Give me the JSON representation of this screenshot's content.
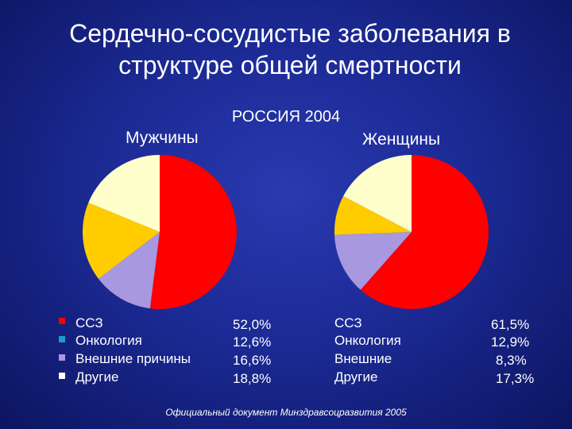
{
  "title_line1": "Сердечно-сосудистые заболевания в",
  "title_line2": "структуре общей смертности",
  "subtitle": "РОССИЯ 2004",
  "source": "Официальный документ Минздравсоцразвития 2005",
  "colors": {
    "ssz": "#ff0000",
    "oncology": "#a898e0",
    "external": "#ffcc00",
    "other": "#ffffcc"
  },
  "chart_data": [
    {
      "type": "pie",
      "title": "Мужчины",
      "slices": [
        {
          "label": "ССЗ",
          "value": 52.0,
          "display": "52,0%",
          "color": "#ff0000"
        },
        {
          "label": "Онкология",
          "value": 12.6,
          "display": "12,6%",
          "color": "#a898e0"
        },
        {
          "label": "Внешние причины",
          "value": 16.6,
          "display": "16,6%",
          "color": "#ffcc00"
        },
        {
          "label": "Другие",
          "value": 18.8,
          "display": "18,8%",
          "color": "#ffffcc"
        }
      ],
      "legend_square_colors": [
        "#ff0000",
        "#1e9bd7",
        "#a898e0",
        "#ffffff"
      ]
    },
    {
      "type": "pie",
      "title": "Женщины",
      "slices": [
        {
          "label": "ССЗ",
          "value": 61.5,
          "display": "61,5%",
          "color": "#ff0000"
        },
        {
          "label": "Онкология",
          "value": 12.9,
          "display": "12,9%",
          "color": "#a898e0"
        },
        {
          "label": "Внешние",
          "value": 8.3,
          "display": "8,3%",
          "color": "#ffcc00"
        },
        {
          "label": "Другие",
          "value": 17.3,
          "display": "17,3%",
          "color": "#ffffcc"
        }
      ]
    }
  ]
}
